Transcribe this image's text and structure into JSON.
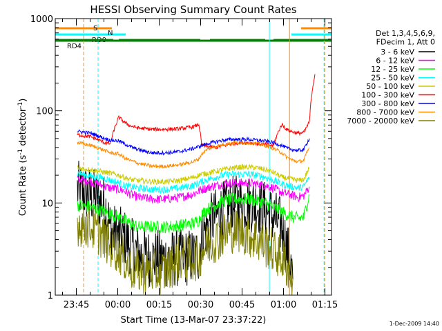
{
  "chart_data": {
    "type": "line",
    "title": "HESSI Observing Summary Count Rates",
    "xlabel": "Start Time (13-Mar-07 23:37:22)",
    "ylabel_main": "Count Rate (s",
    "ylabel_sup1": "-1",
    "ylabel_mid": " detector",
    "ylabel_sup2": "-1",
    "ylabel_end": ")",
    "yscale": "log",
    "ylim": [
      1,
      1000
    ],
    "xlim_minutes": [
      0,
      100
    ],
    "y_ticks": [
      {
        "value": 1,
        "label": "1"
      },
      {
        "value": 10,
        "label": "10"
      },
      {
        "value": 100,
        "label": "100"
      },
      {
        "value": 1000,
        "label": "1000"
      }
    ],
    "x_ticks": [
      {
        "minute": 7.63,
        "label": "23:45"
      },
      {
        "minute": 22.63,
        "label": "00:00"
      },
      {
        "minute": 37.63,
        "label": "00:15"
      },
      {
        "minute": 52.63,
        "label": "00:30"
      },
      {
        "minute": 67.63,
        "label": "00:45"
      },
      {
        "minute": 82.63,
        "label": "01:00"
      },
      {
        "minute": 97.63,
        "label": "01:15"
      }
    ],
    "legend_header": [
      "Det 1,3,4,5,6,9,",
      "FDecim 1, Att 0"
    ],
    "legend_placement": "right",
    "series": [
      {
        "name": "3 - 6 keV",
        "color": "#000000",
        "x": [
          0,
          4.5,
          8,
          13,
          18,
          20,
          23,
          25,
          27,
          30,
          35,
          40,
          45,
          50,
          52,
          53,
          55,
          58,
          61,
          64,
          67,
          70,
          73,
          76,
          79,
          82,
          84,
          86,
          88,
          90,
          92,
          94,
          96
        ],
        "y": [
          null,
          null,
          14,
          12,
          9.5,
          5,
          4.5,
          4.2,
          3.5,
          2.8,
          2.5,
          2.5,
          2.5,
          2.6,
          2.8,
          4.5,
          5.5,
          7,
          8.5,
          9.5,
          10,
          10,
          9.5,
          8.5,
          7,
          5.5,
          3,
          1.5,
          null,
          null,
          null,
          null,
          null
        ]
      },
      {
        "name": "6 - 12 keV",
        "color": "#ff00ff",
        "x": [
          0,
          4.5,
          8,
          13,
          18,
          20,
          23,
          25,
          27,
          30,
          35,
          40,
          45,
          50,
          52,
          53,
          55,
          58,
          61,
          64,
          67,
          70,
          73,
          76,
          79,
          82,
          84,
          86,
          88,
          90,
          92,
          94,
          96
        ],
        "y": [
          null,
          null,
          18,
          17,
          15,
          14.5,
          14,
          13.5,
          12.5,
          11.5,
          11,
          11,
          11.5,
          12.5,
          13.5,
          14,
          14.5,
          15.5,
          16,
          16.5,
          16.5,
          16.5,
          16,
          15.5,
          14.5,
          13,
          12.5,
          12,
          11.5,
          12,
          15,
          null,
          null
        ]
      },
      {
        "name": "12 - 25 keV",
        "color": "#00ff00",
        "x": [
          0,
          4.5,
          8,
          13,
          18,
          20,
          23,
          25,
          27,
          30,
          35,
          40,
          45,
          50,
          52,
          53,
          55,
          58,
          61,
          64,
          67,
          70,
          73,
          76,
          79,
          82,
          84,
          86,
          88,
          90,
          92,
          94,
          96
        ],
        "y": [
          null,
          null,
          9.5,
          9,
          8,
          7.5,
          7,
          6.5,
          6,
          5.5,
          5.5,
          5.5,
          5.7,
          6,
          6.5,
          7.5,
          8.5,
          9.5,
          10.5,
          11,
          11,
          11,
          10.5,
          10,
          9,
          8,
          7.5,
          7,
          6.8,
          7,
          12,
          null,
          null
        ]
      },
      {
        "name": "25 - 50 keV",
        "color": "#00ffff",
        "x": [
          0,
          4.5,
          8,
          13,
          18,
          20,
          23,
          25,
          27,
          30,
          35,
          40,
          45,
          50,
          52,
          53,
          55,
          58,
          61,
          64,
          67,
          70,
          73,
          76,
          79,
          82,
          84,
          86,
          88,
          90,
          92,
          94,
          96
        ],
        "y": [
          null,
          null,
          21,
          19.5,
          18.5,
          17.5,
          16.5,
          15.5,
          15,
          14.5,
          14,
          14,
          14.5,
          15.5,
          16.5,
          17,
          18,
          19,
          20,
          20.5,
          20.5,
          20.5,
          20,
          19,
          17.5,
          16,
          15.5,
          15,
          14.5,
          15,
          19,
          null,
          null
        ]
      },
      {
        "name": "50 - 100 keV",
        "color": "#cccc00",
        "x": [
          0,
          4.5,
          8,
          13,
          18,
          20,
          23,
          25,
          27,
          30,
          35,
          40,
          45,
          50,
          52,
          53,
          55,
          58,
          61,
          64,
          67,
          70,
          73,
          76,
          79,
          82,
          84,
          86,
          88,
          90,
          92,
          94,
          96
        ],
        "y": [
          null,
          null,
          24,
          23,
          21.5,
          21,
          20,
          19,
          18,
          17.5,
          17,
          17,
          17.5,
          19,
          20,
          20.5,
          21,
          22,
          23,
          24,
          24.5,
          24.5,
          24,
          23,
          21.5,
          19,
          18.5,
          18,
          17.5,
          18,
          24,
          null,
          null
        ]
      },
      {
        "name": "100 - 300 keV",
        "color": "#ff0000",
        "x": [
          0,
          4.5,
          8,
          13,
          18,
          20,
          23,
          25,
          27,
          30,
          35,
          40,
          45,
          50,
          52,
          53,
          55,
          58,
          61,
          64,
          67,
          70,
          73,
          76,
          79,
          82,
          84,
          86,
          88,
          90,
          92,
          94,
          96
        ],
        "y": [
          null,
          null,
          55,
          52,
          45,
          44,
          85,
          75,
          69,
          65,
          63,
          63,
          64,
          67,
          71,
          42,
          41,
          40,
          42,
          44,
          45,
          45,
          44,
          43,
          42,
          71,
          62,
          59,
          57,
          58,
          75,
          250,
          null
        ]
      },
      {
        "name": "300 - 800 keV",
        "color": "#0000ff",
        "x": [
          0,
          4.5,
          8,
          13,
          18,
          20,
          23,
          25,
          27,
          30,
          35,
          40,
          45,
          50,
          52,
          53,
          55,
          58,
          61,
          64,
          67,
          70,
          73,
          76,
          79,
          82,
          84,
          86,
          88,
          90,
          92,
          94,
          96
        ],
        "y": [
          null,
          null,
          60,
          57,
          50,
          48,
          47,
          44,
          41,
          38,
          35,
          35,
          36,
          39,
          41,
          42,
          44,
          46,
          48,
          49,
          49,
          49,
          48,
          47,
          45,
          42,
          39,
          38,
          37,
          38,
          50,
          null,
          null
        ]
      },
      {
        "name": "800 - 7000 keV",
        "color": "#ff8c00",
        "x": [
          0,
          4.5,
          8,
          13,
          18,
          20,
          23,
          25,
          27,
          30,
          35,
          40,
          45,
          50,
          52,
          53,
          55,
          58,
          61,
          64,
          67,
          70,
          73,
          76,
          79,
          82,
          84,
          86,
          88,
          90,
          92,
          94,
          96
        ],
        "y": [
          null,
          null,
          45,
          42,
          37,
          35,
          34,
          31,
          29,
          27,
          25,
          25,
          26,
          28,
          30,
          34,
          38,
          41,
          43,
          45,
          45,
          45,
          44,
          42,
          39,
          35,
          31,
          29,
          28,
          29,
          40,
          null,
          null
        ]
      },
      {
        "name": "7000 - 20000 keV",
        "color": "#808000",
        "x": [
          0,
          4.5,
          8,
          13,
          18,
          20,
          23,
          25,
          27,
          30,
          35,
          40,
          45,
          50,
          52,
          53,
          55,
          58,
          61,
          64,
          67,
          70,
          73,
          76,
          79,
          82,
          84,
          86,
          88,
          90,
          92,
          94,
          96
        ],
        "y": [
          null,
          null,
          6,
          5.5,
          4,
          3.5,
          3,
          2.5,
          2,
          1.8,
          1.8,
          1.8,
          2.5,
          2.5,
          2.5,
          3,
          3.5,
          4,
          4.5,
          5,
          5,
          4.5,
          4,
          3.5,
          3,
          2.5,
          2,
          1.5,
          null,
          null,
          null,
          null,
          null
        ]
      }
    ],
    "attitude_flags": [
      {
        "label": "S",
        "color": "#ff8c00",
        "segments": [
          [
            0,
            20.5
          ],
          [
            89,
            100
          ]
        ]
      },
      {
        "label": "N",
        "color": "#00ffff",
        "segments": [
          [
            0,
            25.5
          ],
          [
            85.5,
            100
          ]
        ]
      },
      {
        "label": "RD0",
        "color": "#008000",
        "segments": [
          [
            0,
            100
          ]
        ]
      },
      {
        "label": "RD4",
        "color": "#008000",
        "segments": [
          [
            0,
            21
          ],
          [
            23,
            52.5
          ],
          [
            56,
            76
          ],
          [
            79,
            100
          ]
        ]
      }
    ],
    "vertical_markers": [
      {
        "minute": 0,
        "color": "#00ffff",
        "style": "solid"
      },
      {
        "minute": 10.3,
        "color": "#ff8c00",
        "style": "dashed"
      },
      {
        "minute": 15.5,
        "color": "#00ffff",
        "style": "dashed"
      },
      {
        "minute": 77.5,
        "color": "#00ffff",
        "style": "solid"
      },
      {
        "minute": 84.8,
        "color": "#ff8c00",
        "style": "solid"
      },
      {
        "minute": 97.3,
        "color": "#00ffff",
        "style": "dashed"
      },
      {
        "minute": 97.5,
        "color": "#ff8c00",
        "style": "dashed"
      }
    ],
    "footer": "1-Dec-2009 14:40"
  }
}
